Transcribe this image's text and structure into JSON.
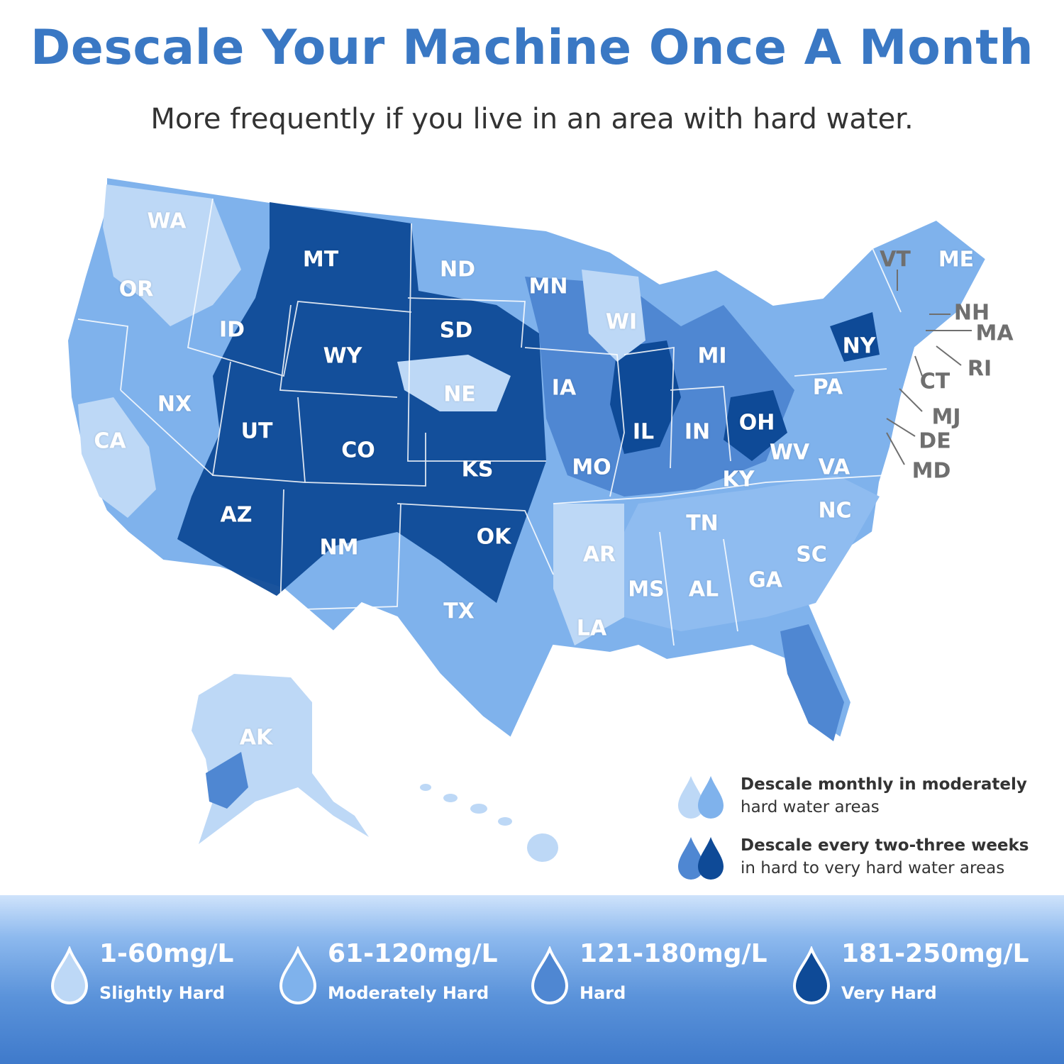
{
  "title": "Descale Your Machine Once A Month",
  "subtitle": "More frequently if you live in an area with hard water.",
  "colors": {
    "slightly_hard": "#bdd8f6",
    "moderately_hard": "#7fb2ec",
    "hard": "#4f87d2",
    "very_hard": "#0e4a97",
    "title": "#3a78c4"
  },
  "states": {
    "WA": "WA",
    "OR": "OR",
    "CA": "CA",
    "NX": "NX",
    "ID": "ID",
    "MT": "MT",
    "WY": "WY",
    "UT": "UT",
    "AZ": "AZ",
    "CO": "CO",
    "NM": "NM",
    "ND": "ND",
    "SD": "SD",
    "NE": "NE",
    "KS": "KS",
    "OK": "OK",
    "TX": "TX",
    "MN": "MN",
    "IA": "IA",
    "MO": "MO",
    "AR": "AR",
    "LA": "LA",
    "WI": "WI",
    "IL": "IL",
    "MI": "MI",
    "IN": "IN",
    "OH": "OH",
    "KY": "KY",
    "TN": "TN",
    "MS": "MS",
    "AL": "AL",
    "GA": "GA",
    "SC": "SC",
    "NC": "NC",
    "VA": "VA",
    "WV": "WV",
    "PA": "PA",
    "NY": "NY",
    "VT": "VT",
    "ME": "ME",
    "NH": "NH",
    "MA": "MA",
    "RI": "RI",
    "CT": "CT",
    "MJ": "MJ",
    "DE": "DE",
    "MD": "MD",
    "AK": "AK"
  },
  "legend": {
    "moderate": {
      "bold": "Descale monthly in moderately",
      "normal": "hard water areas"
    },
    "hard": {
      "bold": "Descale every two-three weeks",
      "normal": "in hard to very hard water areas"
    }
  },
  "hardness_scale": [
    {
      "range": "1-60mg/L",
      "label": "Slightly Hard",
      "color": "#bdd8f6"
    },
    {
      "range": "61-120mg/L",
      "label": "Moderately Hard",
      "color": "#7fb2ec"
    },
    {
      "range": "121-180mg/L",
      "label": "Hard",
      "color": "#4f87d2"
    },
    {
      "range": "181-250mg/L",
      "label": "Very Hard",
      "color": "#0e4a97"
    }
  ]
}
